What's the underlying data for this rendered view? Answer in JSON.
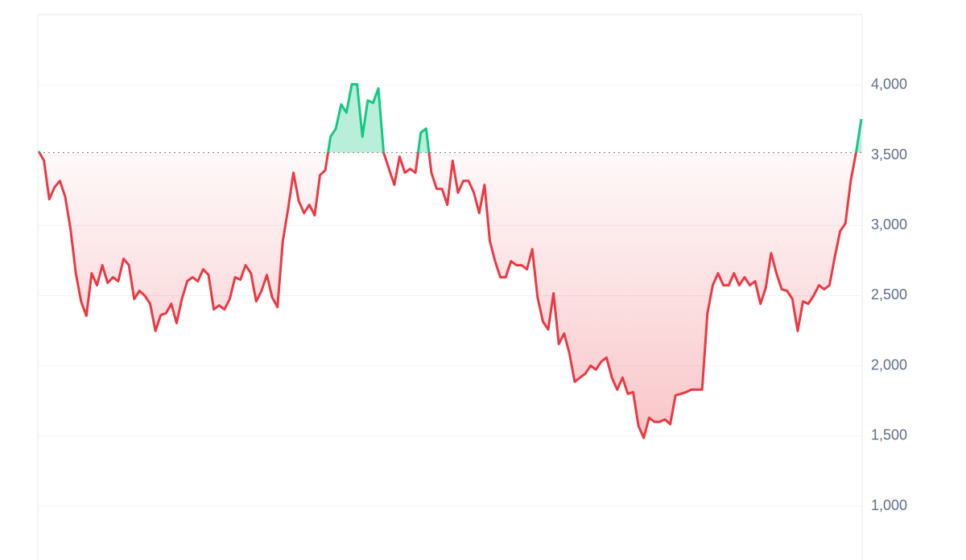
{
  "chart_data": {
    "type": "baseline-area",
    "values": [
      3530,
      3462,
      3187,
      3273,
      3318,
      3204,
      2975,
      2660,
      2459,
      2356,
      2660,
      2574,
      2717,
      2591,
      2631,
      2603,
      2763,
      2717,
      2477,
      2534,
      2500,
      2442,
      2248,
      2362,
      2374,
      2442,
      2305,
      2477,
      2603,
      2631,
      2603,
      2688,
      2648,
      2402,
      2431,
      2402,
      2477,
      2631,
      2614,
      2717,
      2660,
      2459,
      2534,
      2648,
      2488,
      2419,
      2889,
      3118,
      3376,
      3175,
      3089,
      3147,
      3072,
      3359,
      3393,
      3633,
      3691,
      3863,
      3805,
      4006,
      4006,
      3633,
      3891,
      3874,
      3977,
      3519,
      3404,
      3290,
      3490,
      3376,
      3404,
      3376,
      3662,
      3691,
      3376,
      3261,
      3261,
      3147,
      3462,
      3233,
      3318,
      3318,
      3233,
      3089,
      3290,
      2889,
      2746,
      2631,
      2631,
      2746,
      2717,
      2717,
      2688,
      2831,
      2488,
      2316,
      2259,
      2517,
      2156,
      2230,
      2087,
      1887,
      1916,
      1944,
      2001,
      1973,
      2030,
      2058,
      1916,
      1830,
      1916,
      1801,
      1813,
      1572,
      1486,
      1630,
      1601,
      1601,
      1618,
      1584,
      1790,
      1801,
      1813,
      1830,
      1830,
      1830,
      2374,
      2574,
      2660,
      2574,
      2574,
      2660,
      2574,
      2631,
      2574,
      2603,
      2442,
      2557,
      2803,
      2660,
      2545,
      2534,
      2477,
      2248,
      2459,
      2442,
      2500,
      2574,
      2545,
      2574,
      2775,
      2958,
      3015,
      3318,
      3519,
      3759
    ],
    "baseline": 3520,
    "up_color": "#16c784",
    "down_color": "#ea3943",
    "ylim": [
      616,
      4504
    ],
    "yticks": [
      {
        "value": 1000,
        "label": "1,000"
      },
      {
        "value": 1500,
        "label": "1,500"
      },
      {
        "value": 2000,
        "label": "2,000"
      },
      {
        "value": 2500,
        "label": "2,500"
      },
      {
        "value": 3000,
        "label": "3,000"
      },
      {
        "value": 3500,
        "label": "3,500"
      },
      {
        "value": 4000,
        "label": "4,000"
      }
    ],
    "grid": true
  }
}
